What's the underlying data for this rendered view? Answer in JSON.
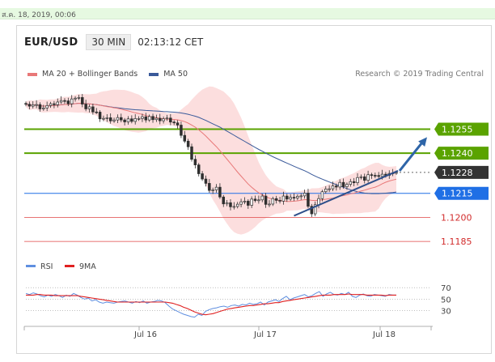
{
  "top_date": "ส.ค. 18, 2019, 00:06",
  "header": {
    "pair": "EUR/USD",
    "timeframe": "30 MIN",
    "clock": "02:13:12 CET"
  },
  "legend": {
    "ma20_label": "MA 20 + Bollinger Bands",
    "ma50_label": "MA 50",
    "credit": "Research © 2019 Trading Central"
  },
  "colors": {
    "green_level": "#5aa300",
    "blue_level": "#1f6fe5",
    "red_level": "#e04545",
    "ma20": "#e87878",
    "ma50": "#3a5a9a",
    "band_fill": "#fcdada",
    "candle": "#2f2f2f",
    "current_tag": "#333333",
    "arrow": "#2e65a8",
    "rsi": "#5f8fe0",
    "rsi_ma": "#e02020"
  },
  "chart_data": [
    {
      "type": "line",
      "subtype": "candlestick",
      "title": "EUR/USD",
      "timeframe": "30 MIN",
      "x_tick_labels": [
        "Jul 16",
        "Jul 17",
        "Jul 18"
      ],
      "ylim": [
        1.1178,
        1.1285
      ],
      "levels": [
        {
          "label": "1.1255",
          "value": 1.1255,
          "color": "#5aa300",
          "kind": "resistance"
        },
        {
          "label": "1.1240",
          "value": 1.124,
          "color": "#5aa300",
          "kind": "resistance"
        },
        {
          "label": "1.1228",
          "value": 1.1228,
          "color": "#333333",
          "kind": "current"
        },
        {
          "label": "1.1215",
          "value": 1.1215,
          "color": "#1f6fe5",
          "kind": "pivot"
        },
        {
          "label": "1.1200",
          "value": 1.12,
          "color": "#e04545",
          "kind": "support"
        },
        {
          "label": "1.1185",
          "value": 1.1185,
          "color": "#e04545",
          "kind": "support"
        }
      ],
      "close_series": [
        1.12705,
        1.12693,
        1.12702,
        1.12703,
        1.12676,
        1.12682,
        1.12697,
        1.12708,
        1.12702,
        1.12719,
        1.12728,
        1.12726,
        1.12708,
        1.12738,
        1.12743,
        1.12747,
        1.12706,
        1.12676,
        1.12689,
        1.12657,
        1.12656,
        1.12614,
        1.12617,
        1.12621,
        1.12601,
        1.12607,
        1.12622,
        1.12607,
        1.12595,
        1.12614,
        1.12598,
        1.12616,
        1.12616,
        1.12627,
        1.12607,
        1.12629,
        1.12609,
        1.12618,
        1.12602,
        1.12614,
        1.12619,
        1.12594,
        1.12589,
        1.12575,
        1.12511,
        1.12475,
        1.1244,
        1.12362,
        1.12327,
        1.12272,
        1.12239,
        1.12212,
        1.12168,
        1.12171,
        1.12188,
        1.12127,
        1.12084,
        1.12091,
        1.12066,
        1.12068,
        1.12082,
        1.12097,
        1.12101,
        1.12075,
        1.12114,
        1.12105,
        1.12109,
        1.12133,
        1.12081,
        1.12083,
        1.12117,
        1.12106,
        1.12101,
        1.12133,
        1.12114,
        1.12125,
        1.12121,
        1.12131,
        1.12134,
        1.12151,
        1.12069,
        1.12022,
        1.12079,
        1.12117,
        1.1216,
        1.12177,
        1.12178,
        1.12196,
        1.12189,
        1.12218,
        1.12191,
        1.12206,
        1.12223,
        1.12216,
        1.12248,
        1.12253,
        1.12231,
        1.12266,
        1.12262,
        1.12261,
        1.12255,
        1.12269,
        1.12262,
        1.12274,
        1.12277,
        1.1228
      ],
      "series": [
        {
          "name": "MA 20 + Bollinger Bands",
          "color": "#e87878"
        },
        {
          "name": "MA 50",
          "color": "#3a5a9a"
        }
      ],
      "trendline": {
        "from": 1.1201,
        "to": 1.1229
      },
      "projection_arrow": {
        "from": 1.1229,
        "to": 1.1252
      }
    },
    {
      "type": "line",
      "title": "RSI",
      "series": [
        {
          "name": "RSI",
          "color": "#5f8fe0"
        },
        {
          "name": "9MA",
          "color": "#e02020"
        }
      ],
      "y_tick_labels": [
        "70",
        "50",
        "30"
      ],
      "ylim": [
        10,
        80
      ],
      "x_tick_labels": [
        "Jul 16",
        "Jul 17",
        "Jul 18"
      ],
      "rsi_values": [
        60,
        58,
        61,
        59,
        56,
        54,
        57,
        55,
        58,
        56,
        53,
        57,
        55,
        60,
        57,
        53,
        50,
        52,
        47,
        49,
        45,
        43,
        45,
        44,
        43,
        45,
        46,
        47,
        45,
        43,
        46,
        44,
        47,
        43,
        45,
        46,
        48,
        47,
        44,
        38,
        33,
        30,
        27,
        24,
        22,
        20,
        19,
        24,
        22,
        29,
        32,
        34,
        35,
        37,
        38,
        36,
        39,
        40,
        38,
        41,
        40,
        43,
        41,
        42,
        45,
        40,
        45,
        47,
        49,
        46,
        51,
        55,
        49,
        52,
        54,
        56,
        58,
        54,
        56,
        60,
        63,
        55,
        59,
        62,
        58,
        57,
        60,
        58,
        62,
        55,
        53,
        57,
        59,
        56,
        55,
        58,
        57,
        56,
        55,
        58,
        57,
        57
      ],
      "ma_values": [
        57,
        57,
        57,
        58,
        58,
        57,
        57,
        57,
        56,
        56,
        56,
        56,
        56,
        56,
        56,
        55,
        54,
        53,
        52,
        51,
        50,
        49,
        48,
        47,
        46,
        45,
        45,
        45,
        45,
        45,
        45,
        45,
        45,
        45,
        45,
        45,
        45,
        45,
        45,
        44,
        43,
        41,
        39,
        36,
        34,
        31,
        28,
        26,
        24,
        23,
        24,
        25,
        27,
        29,
        31,
        33,
        34,
        35,
        36,
        37,
        38,
        39,
        39,
        40,
        41,
        42,
        42,
        43,
        44,
        44,
        46,
        47,
        48,
        49,
        50,
        51,
        52,
        53,
        54,
        55,
        56,
        57,
        57,
        57,
        58,
        58,
        58,
        58,
        59,
        58,
        58,
        58,
        58,
        57,
        57,
        57,
        57,
        57,
        56,
        57,
        57,
        57
      ]
    }
  ]
}
